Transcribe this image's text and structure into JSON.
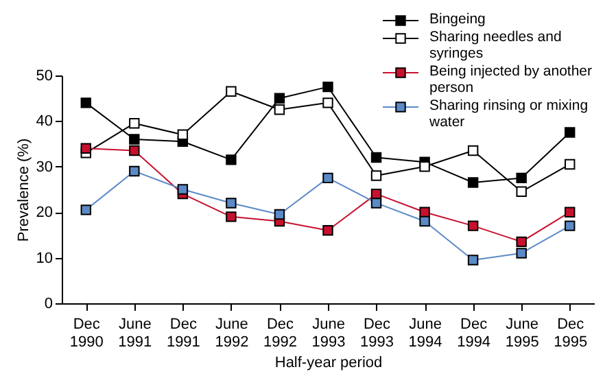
{
  "chart_data": {
    "type": "line",
    "xlabel": "Half-year period",
    "ylabel": "Prevalence (%)",
    "categories": [
      "Dec 1990",
      "June 1991",
      "Dec 1991",
      "June 1992",
      "Dec 1992",
      "June 1993",
      "Dec 1993",
      "June 1994",
      "Dec 1994",
      "June 1995",
      "Dec 1995"
    ],
    "series": [
      {
        "name": "Bingeing",
        "color": "#000000",
        "values": [
          44,
          36,
          35.5,
          31.5,
          45,
          47.5,
          32,
          31,
          26.5,
          27.5,
          37.5
        ]
      },
      {
        "name": "Sharing needles and syringes",
        "color": "#000000",
        "values": [
          33,
          39.5,
          37,
          46.5,
          42.5,
          44,
          28,
          30,
          33.5,
          24.5,
          30.5
        ]
      },
      {
        "name": "Being injected by another person",
        "color": "#c8102e",
        "values": [
          34,
          33.5,
          24,
          19,
          18,
          16,
          24,
          20,
          17,
          13.5,
          20
        ]
      },
      {
        "name": "Sharing rinsing or mixing water",
        "color": "#5b8ac6",
        "values": [
          20.5,
          29,
          25,
          22,
          19.5,
          27.5,
          22,
          18,
          9.5,
          11,
          17
        ]
      }
    ],
    "ylim": [
      0,
      50
    ],
    "yticks": [
      0,
      10,
      20,
      30,
      40,
      50
    ],
    "grid": false,
    "legend": "top right",
    "marker": "square",
    "line_style": "solid"
  }
}
